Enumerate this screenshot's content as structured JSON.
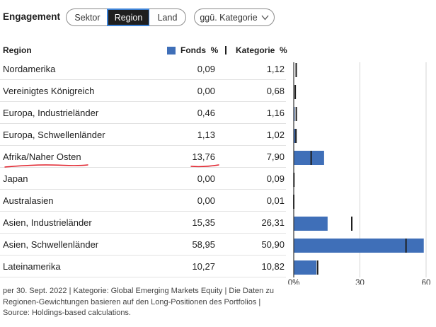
{
  "header": {
    "title": "Engagement",
    "tabs": [
      {
        "label": "Sektor"
      },
      {
        "label": "Region",
        "selected": true
      },
      {
        "label": "Land"
      }
    ],
    "dropdown": {
      "label": "ggü. Kategorie"
    }
  },
  "table": {
    "columns": {
      "region": "Region",
      "fonds": "Fonds  %",
      "kategorie": "Kategorie  %"
    }
  },
  "chart_data": {
    "type": "bar",
    "orientation": "horizontal",
    "categories": [
      "Nordamerika",
      "Vereinigtes Königreich",
      "Europa, Industrieländer",
      "Europa, Schwellenländer",
      "Afrika/Naher Osten",
      "Japan",
      "Australasien",
      "Asien, Industrieländer",
      "Asien, Schwellenländer",
      "Lateinamerika"
    ],
    "series": [
      {
        "name": "Fonds  %",
        "values": [
          0.09,
          0.0,
          0.46,
          1.13,
          13.76,
          0.0,
          0.0,
          15.35,
          58.95,
          10.27
        ],
        "display": [
          "0,09",
          "0,00",
          "0,46",
          "1,13",
          "13,76",
          "0,00",
          "0,00",
          "15,35",
          "58,95",
          "10,27"
        ],
        "color": "#3f6fb8",
        "mark": "bar"
      },
      {
        "name": "Kategorie  %",
        "values": [
          1.12,
          0.68,
          1.16,
          1.02,
          7.9,
          0.09,
          0.01,
          26.31,
          50.9,
          10.82
        ],
        "display": [
          "1,12",
          "0,68",
          "1,16",
          "1,02",
          "7,90",
          "0,09",
          "0,01",
          "26,31",
          "50,90",
          "10,82"
        ],
        "color": "#1e1e1e",
        "mark": "tick"
      }
    ],
    "xlim": [
      0,
      60
    ],
    "xticks": [
      0,
      30,
      60
    ],
    "xtick_labels": [
      "0%",
      "30",
      "60"
    ],
    "grid": true,
    "annotation": {
      "type": "red-underline",
      "color": "#e0202a",
      "row": 4
    }
  },
  "footer": {
    "lines": [
      "per 30. Sept. 2022 | Kategorie: Global Emerging Markets Equity | Die Daten zu",
      "Regionen-Gewichtungen basieren auf den Long-Positionen des Portfolios |",
      "Source: Holdings-based calculations."
    ]
  }
}
